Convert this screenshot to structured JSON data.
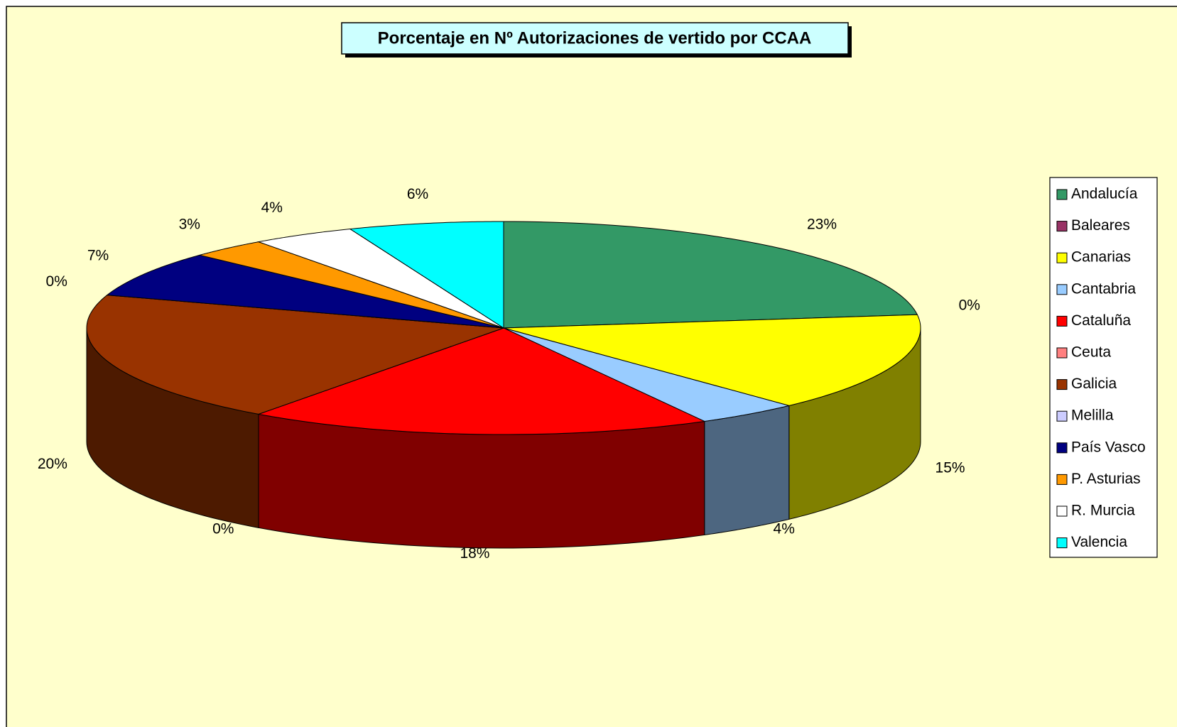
{
  "chart_data": {
    "type": "pie",
    "title": "Porcentaje en Nº Autorizaciones de vertido por CCAA",
    "categories": [
      "Andalucía",
      "Baleares",
      "Canarias",
      "Cantabria",
      "Cataluña",
      "Ceuta",
      "Galicia",
      "Melilla",
      "País Vasco",
      "P. Asturias",
      "R. Murcia",
      "Valencia"
    ],
    "values": [
      23,
      0,
      15,
      4,
      18,
      0,
      20,
      0,
      7,
      3,
      4,
      6
    ],
    "value_labels": [
      "23%",
      "0%",
      "15%",
      "4%",
      "18%",
      "0%",
      "20%",
      "0%",
      "7%",
      "3%",
      "4%",
      "6%"
    ],
    "colors": [
      "#339966",
      "#993366",
      "#ffff00",
      "#99ccff",
      "#ff0000",
      "#ff8080",
      "#993300",
      "#ccccff",
      "#000080",
      "#ff9900",
      "#ffffff",
      "#00ffff"
    ],
    "legend": "right"
  }
}
